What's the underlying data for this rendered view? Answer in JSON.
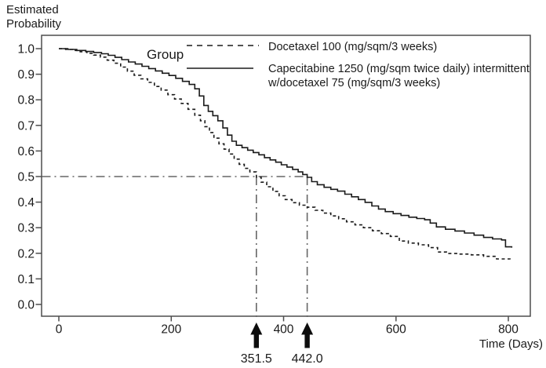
{
  "y_axis_title": {
    "line1": "Estimated",
    "line2": "Probability"
  },
  "axes": {
    "x_label": "Time (Days)",
    "x_ticks": [
      "0",
      "200",
      "400",
      "600",
      "800"
    ],
    "y_ticks": [
      "1.0",
      "0.9",
      "0.8",
      "0.7",
      "0.6",
      "0.5",
      "0.4",
      "0.3",
      "0.2",
      "0.1",
      "0.0"
    ]
  },
  "legend": {
    "title": "Group",
    "item1_label": "Docetaxel 100 (mg/sqm/3 weeks)",
    "item2_label_line1": "Capecitabine 1250 (mg/sqm twice daily) intermittent",
    "item2_label_line2": "w/docetaxel 75 (mg/sqm/3 weeks)"
  },
  "annotations": {
    "median_1": "351.5",
    "median_2": "442.0"
  },
  "colors": {
    "curve": "#1a1a1a",
    "reference_line": "#666666",
    "axis": "#4d4d4d",
    "arrow": "#0d0d0d",
    "background": "#ffffff"
  },
  "chart_data": {
    "type": "line",
    "subtype": "kaplan-meier-step",
    "title": "",
    "xlabel": "Time (Days)",
    "ylabel": "Estimated Probability",
    "xlim": [
      -31,
      839
    ],
    "ylim": [
      -0.046,
      1.052
    ],
    "x_tick_values": [
      0,
      200,
      400,
      600,
      800
    ],
    "y_tick_values": [
      1.0,
      0.9,
      0.8,
      0.7,
      0.6,
      0.5,
      0.4,
      0.3,
      0.2,
      0.1,
      0.0
    ],
    "grid": false,
    "legend_position": "top-right-inside",
    "reference_probability": 0.5,
    "medians": [
      {
        "series": "Docetaxel 100 (mg/sqm/3 weeks)",
        "time_days": 351.5,
        "label": "351.5"
      },
      {
        "series": "Capecitabine 1250 (mg/sqm twice daily) intermittent w/docetaxel 75 (mg/sqm/3 weeks)",
        "time_days": 442.0,
        "label": "442.0"
      }
    ],
    "series": [
      {
        "name": "Capecitabine 1250 (mg/sqm twice daily) intermittent w/docetaxel 75 (mg/sqm/3 weeks)",
        "line": "solid",
        "step": true,
        "points": [
          [
            0,
            1.0
          ],
          [
            16,
            0.997
          ],
          [
            32,
            0.993
          ],
          [
            48,
            0.989
          ],
          [
            62,
            0.985
          ],
          [
            76,
            0.98
          ],
          [
            88,
            0.974
          ],
          [
            100,
            0.966
          ],
          [
            112,
            0.957
          ],
          [
            124,
            0.948
          ],
          [
            136,
            0.94
          ],
          [
            148,
            0.931
          ],
          [
            160,
            0.922
          ],
          [
            172,
            0.913
          ],
          [
            184,
            0.904
          ],
          [
            196,
            0.895
          ],
          [
            208,
            0.884
          ],
          [
            220,
            0.872
          ],
          [
            232,
            0.86
          ],
          [
            242,
            0.843
          ],
          [
            250,
            0.815
          ],
          [
            258,
            0.778
          ],
          [
            266,
            0.755
          ],
          [
            274,
            0.738
          ],
          [
            283,
            0.718
          ],
          [
            292,
            0.69
          ],
          [
            300,
            0.662
          ],
          [
            308,
            0.638
          ],
          [
            316,
            0.622
          ],
          [
            326,
            0.613
          ],
          [
            336,
            0.603
          ],
          [
            346,
            0.594
          ],
          [
            356,
            0.585
          ],
          [
            366,
            0.574
          ],
          [
            376,
            0.565
          ],
          [
            386,
            0.556
          ],
          [
            396,
            0.546
          ],
          [
            406,
            0.537
          ],
          [
            416,
            0.528
          ],
          [
            426,
            0.518
          ],
          [
            434,
            0.508
          ],
          [
            442,
            0.497
          ],
          [
            450,
            0.48
          ],
          [
            460,
            0.468
          ],
          [
            472,
            0.458
          ],
          [
            484,
            0.45
          ],
          [
            496,
            0.443
          ],
          [
            509,
            0.431
          ],
          [
            521,
            0.421
          ],
          [
            533,
            0.41
          ],
          [
            545,
            0.399
          ],
          [
            557,
            0.385
          ],
          [
            569,
            0.373
          ],
          [
            581,
            0.363
          ],
          [
            595,
            0.355
          ],
          [
            609,
            0.348
          ],
          [
            623,
            0.341
          ],
          [
            637,
            0.336
          ],
          [
            651,
            0.331
          ],
          [
            661,
            0.318
          ],
          [
            672,
            0.303
          ],
          [
            688,
            0.294
          ],
          [
            705,
            0.287
          ],
          [
            722,
            0.279
          ],
          [
            739,
            0.271
          ],
          [
            756,
            0.262
          ],
          [
            772,
            0.256
          ],
          [
            788,
            0.252
          ],
          [
            795,
            0.225
          ],
          [
            806,
            0.222
          ]
        ]
      },
      {
        "name": "Docetaxel 100 (mg/sqm/3 weeks)",
        "line": "dashed",
        "step": true,
        "points": [
          [
            0,
            1.0
          ],
          [
            12,
            0.997
          ],
          [
            25,
            0.993
          ],
          [
            38,
            0.988
          ],
          [
            50,
            0.982
          ],
          [
            62,
            0.975
          ],
          [
            74,
            0.967
          ],
          [
            86,
            0.955
          ],
          [
            98,
            0.943
          ],
          [
            110,
            0.928
          ],
          [
            122,
            0.912
          ],
          [
            134,
            0.896
          ],
          [
            146,
            0.882
          ],
          [
            158,
            0.868
          ],
          [
            170,
            0.852
          ],
          [
            182,
            0.838
          ],
          [
            194,
            0.82
          ],
          [
            206,
            0.803
          ],
          [
            218,
            0.786
          ],
          [
            230,
            0.763
          ],
          [
            242,
            0.74
          ],
          [
            252,
            0.718
          ],
          [
            260,
            0.695
          ],
          [
            268,
            0.672
          ],
          [
            276,
            0.65
          ],
          [
            285,
            0.628
          ],
          [
            294,
            0.607
          ],
          [
            303,
            0.588
          ],
          [
            312,
            0.568
          ],
          [
            321,
            0.548
          ],
          [
            330,
            0.532
          ],
          [
            340,
            0.518
          ],
          [
            351.5,
            0.498
          ],
          [
            360,
            0.478
          ],
          [
            370,
            0.46
          ],
          [
            381,
            0.442
          ],
          [
            392,
            0.425
          ],
          [
            403,
            0.41
          ],
          [
            415,
            0.398
          ],
          [
            428,
            0.388
          ],
          [
            442,
            0.38
          ],
          [
            456,
            0.368
          ],
          [
            470,
            0.357
          ],
          [
            484,
            0.346
          ],
          [
            498,
            0.335
          ],
          [
            512,
            0.323
          ],
          [
            527,
            0.311
          ],
          [
            542,
            0.3
          ],
          [
            558,
            0.288
          ],
          [
            574,
            0.277
          ],
          [
            590,
            0.266
          ],
          [
            606,
            0.248
          ],
          [
            622,
            0.24
          ],
          [
            640,
            0.233
          ],
          [
            658,
            0.222
          ],
          [
            674,
            0.205
          ],
          [
            690,
            0.199
          ],
          [
            712,
            0.197
          ],
          [
            734,
            0.194
          ],
          [
            756,
            0.188
          ],
          [
            779,
            0.178
          ],
          [
            803,
            0.176
          ]
        ]
      }
    ]
  }
}
